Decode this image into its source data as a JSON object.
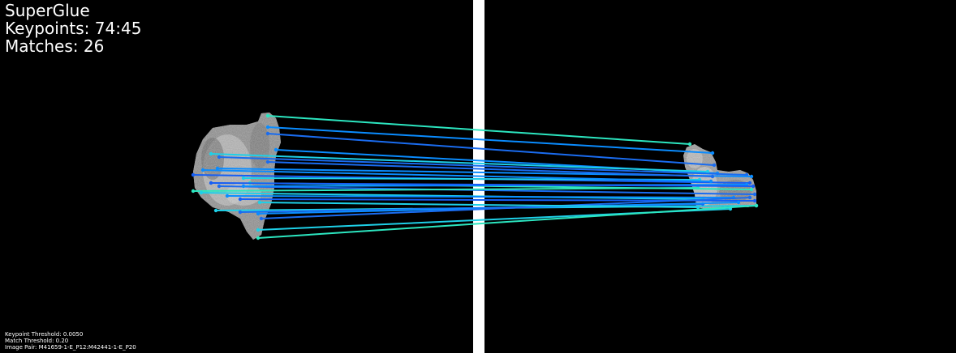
{
  "overlay": {
    "method": "SuperGlue",
    "keypoints": "Keypoints: 74:45",
    "matches": "Matches: 26"
  },
  "footer": {
    "keypoint_threshold": "Keypoint Threshold: 0.0050",
    "match_threshold": "Match Threshold: 0.20",
    "image_pair": "Image Pair: M41659-1-E_P12:M42441-1-E_P20"
  },
  "match_colors": [
    "#2ce6c0",
    "#1a6cf0",
    "#0a8cff",
    "#1ed0e8",
    "#155ef5"
  ]
}
